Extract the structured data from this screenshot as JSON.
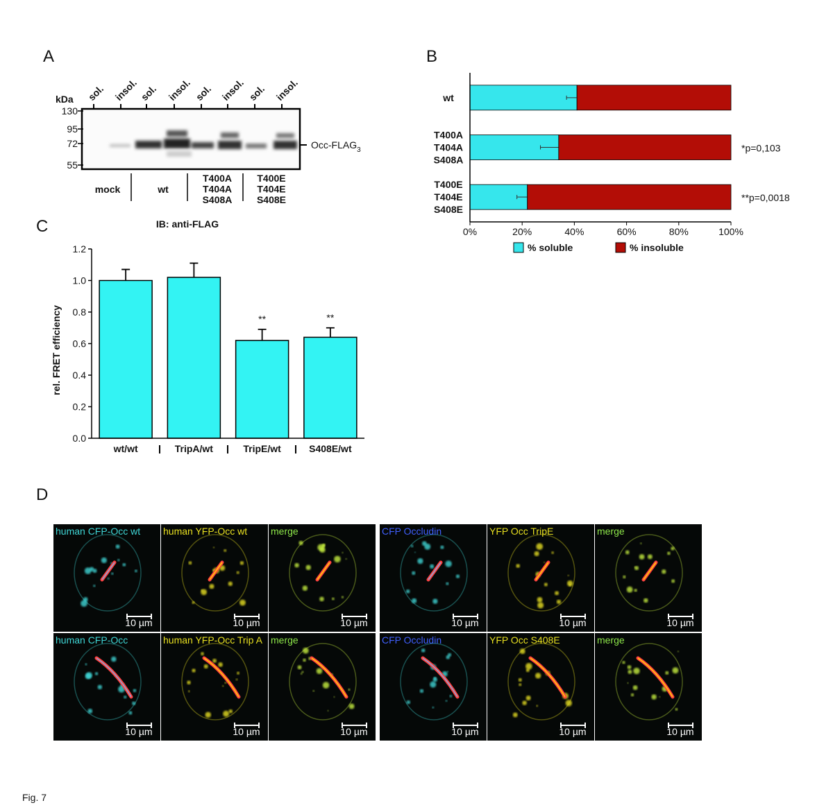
{
  "figure_label": "Fig. 7",
  "blot": {
    "panel_label": "A",
    "unit": "kDa",
    "markers": [
      130,
      95,
      72,
      55
    ],
    "lanes": [
      "sol.",
      "insol.",
      "sol.",
      "insol.",
      "sol.",
      "insol.",
      "sol.",
      "insol."
    ],
    "band_label": "Occ-FLAG",
    "band_label_subscript": "3",
    "groups": [
      [
        "mock"
      ],
      [
        "wt"
      ],
      [
        "T400A",
        "T404A",
        "S408A"
      ],
      [
        "T400E",
        "T404E",
        "S408E"
      ]
    ],
    "caption": "IB: anti-FLAG"
  },
  "chart_data": [
    {
      "type": "bar",
      "panel_label": "B",
      "horizontal": true,
      "stacked": true,
      "categories": [
        [
          "wt"
        ],
        [
          "T400A",
          "T404A",
          "S408A"
        ],
        [
          "T400E",
          "T404E",
          "S408E"
        ]
      ],
      "series": [
        {
          "name": "% soluble",
          "color": "#36e6ec",
          "values": [
            41,
            34,
            22
          ],
          "errors": [
            4,
            7,
            4
          ]
        },
        {
          "name": "% insoluble",
          "color": "#b30d06",
          "values": [
            59,
            66,
            78
          ]
        }
      ],
      "annotations": [
        null,
        "*p=0,103",
        "**p=0,0018"
      ],
      "xlim": [
        0,
        100
      ],
      "xticks": [
        {
          "value": 0,
          "label": "0%"
        },
        {
          "value": 20,
          "label": "20%"
        },
        {
          "value": 40,
          "label": "40%"
        },
        {
          "value": 60,
          "label": "60%"
        },
        {
          "value": 80,
          "label": "80%"
        },
        {
          "value": 100,
          "label": "100%"
        }
      ]
    },
    {
      "type": "bar",
      "panel_label": "C",
      "horizontal": false,
      "ylabel": "rel. FRET efficiency",
      "categories": [
        "wt/wt",
        "TripA/wt",
        "TripE/wt",
        "S408E/wt"
      ],
      "values": [
        1.0,
        1.02,
        0.62,
        0.64
      ],
      "errors": [
        0.07,
        0.09,
        0.07,
        0.06
      ],
      "annotations": [
        null,
        null,
        "**",
        "**"
      ],
      "color": "#33f3f3",
      "ylim": [
        0,
        1.2
      ],
      "yticks": [
        {
          "value": 0,
          "label": "0.0"
        },
        {
          "value": 0.2,
          "label": "0.2"
        },
        {
          "value": 0.4,
          "label": "0.4"
        },
        {
          "value": 0.6,
          "label": "0.6"
        },
        {
          "value": 0.8,
          "label": "0.8"
        },
        {
          "value": 1.0,
          "label": "1.0"
        },
        {
          "value": 1.2,
          "label": "1.2"
        }
      ]
    }
  ],
  "micrographs": {
    "panel_label": "D",
    "scale_bar": "10 µm",
    "rows": [
      {
        "left": [
          "human CFP-Occ wt",
          "human YFP-Occ wt",
          "merge"
        ],
        "right": [
          "CFP Occludin",
          "YFP Occ TripE",
          "merge"
        ]
      },
      {
        "left": [
          "human CFP-Occ",
          "human YFP-Occ Trip A",
          "merge"
        ],
        "right": [
          "CFP Occludin",
          "YFP Occ S408E",
          "merge"
        ]
      }
    ]
  }
}
